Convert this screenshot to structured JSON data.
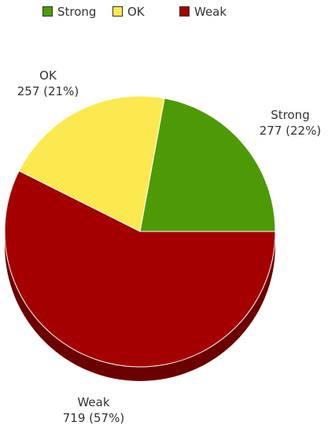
{
  "chart_data": {
    "type": "pie",
    "title": "",
    "categories": [
      "Strong",
      "OK",
      "Weak"
    ],
    "values": [
      277,
      257,
      719
    ],
    "percent_labels": [
      "22%",
      "21%",
      "57%"
    ],
    "colors": [
      "#4e9a06",
      "#fce94f",
      "#a40000"
    ],
    "side_colors": [
      "#2f5f03",
      "#b3a437",
      "#6b0000"
    ],
    "style": "3d",
    "legend": {
      "placement": "top-left",
      "entries": [
        "Strong",
        "OK",
        "Weak"
      ]
    },
    "data_labels": [
      {
        "name": "Strong",
        "value_text": "277 (22%)"
      },
      {
        "name": "OK",
        "value_text": "257 (21%)"
      },
      {
        "name": "Weak",
        "value_text": "719 (57%)"
      }
    ]
  }
}
